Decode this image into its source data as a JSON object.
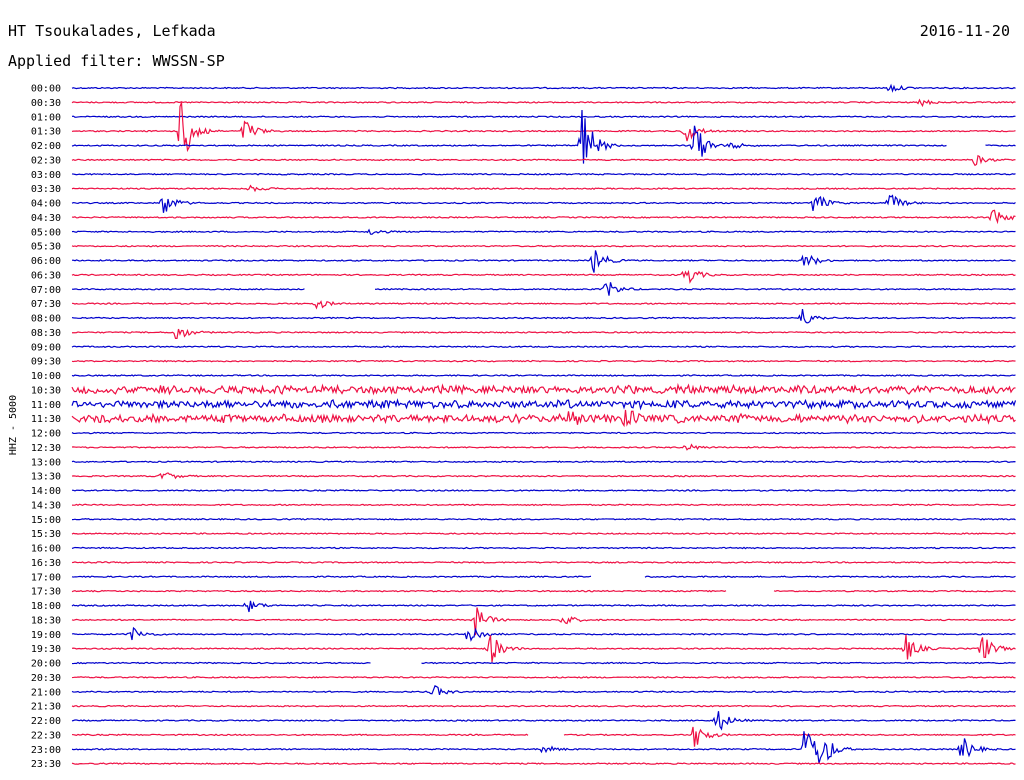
{
  "header": {
    "station": "HT Tsoukalades, Lefkada",
    "date": "2016-11-20",
    "filter": "Applied filter: WWSSN-SP"
  },
  "chart_data": {
    "type": "line",
    "title": "HT Tsoukalades, Lefkada",
    "ylabel": "HHZ - 5000",
    "rows": [
      "00:00",
      "00:30",
      "01:00",
      "01:30",
      "02:00",
      "02:30",
      "03:00",
      "03:30",
      "04:00",
      "04:30",
      "05:00",
      "05:30",
      "06:00",
      "06:30",
      "07:00",
      "07:30",
      "08:00",
      "08:30",
      "09:00",
      "09:30",
      "10:00",
      "10:30",
      "11:00",
      "11:30",
      "12:00",
      "12:30",
      "13:00",
      "13:30",
      "14:00",
      "14:30",
      "15:00",
      "15:30",
      "16:00",
      "16:30",
      "17:00",
      "17:30",
      "18:00",
      "18:30",
      "19:00",
      "19:30",
      "20:00",
      "20:30",
      "21:00",
      "21:30",
      "22:00",
      "22:30",
      "23:00",
      "23:30"
    ],
    "row_minutes": 30,
    "series_colors": [
      "#0000cc",
      "#ee1144"
    ],
    "events": [
      {
        "row": "00:00",
        "minute": 26,
        "amp": 0.4
      },
      {
        "row": "00:30",
        "minute": 27,
        "amp": 0.3
      },
      {
        "row": "01:30",
        "minute": 3.5,
        "amp": 4
      },
      {
        "row": "01:30",
        "minute": 5.5,
        "amp": 1.2
      },
      {
        "row": "01:30",
        "minute": 19.5,
        "amp": 1.1
      },
      {
        "row": "02:00",
        "minute": 16.2,
        "amp": 4
      },
      {
        "row": "02:00",
        "minute": 19.8,
        "amp": 2.2
      },
      {
        "row": "02:00",
        "minute": 21,
        "amp": 0.3
      },
      {
        "row": "02:30",
        "minute": 28.7,
        "amp": 0.5
      },
      {
        "row": "03:30",
        "minute": 5.7,
        "amp": 0.3
      },
      {
        "row": "04:00",
        "minute": 2.9,
        "amp": 1.2
      },
      {
        "row": "04:00",
        "minute": 23.6,
        "amp": 1.1
      },
      {
        "row": "04:00",
        "minute": 26,
        "amp": 0.9
      },
      {
        "row": "04:30",
        "minute": 29.3,
        "amp": 1
      },
      {
        "row": "05:00",
        "minute": 9.5,
        "amp": 0.3
      },
      {
        "row": "06:00",
        "minute": 16.6,
        "amp": 1.2
      },
      {
        "row": "06:00",
        "minute": 23.3,
        "amp": 0.8
      },
      {
        "row": "06:30",
        "minute": 19.5,
        "amp": 1.1
      },
      {
        "row": "07:00",
        "minute": 17,
        "amp": 0.9
      },
      {
        "row": "07:30",
        "minute": 7.8,
        "amp": 0.5
      },
      {
        "row": "08:00",
        "minute": 23.2,
        "amp": 0.9
      },
      {
        "row": "08:30",
        "minute": 3.3,
        "amp": 0.9
      },
      {
        "row": "11:30",
        "minute": 15.8,
        "amp": 0.7
      },
      {
        "row": "11:30",
        "minute": 17.6,
        "amp": 0.7
      },
      {
        "row": "12:30",
        "minute": 19.5,
        "amp": 0.4
      },
      {
        "row": "13:30",
        "minute": 2.9,
        "amp": 0.5
      },
      {
        "row": "18:00",
        "minute": 5.6,
        "amp": 0.6
      },
      {
        "row": "18:30",
        "minute": 12.8,
        "amp": 1.5
      },
      {
        "row": "18:30",
        "minute": 15.6,
        "amp": 0.6
      },
      {
        "row": "19:00",
        "minute": 1.9,
        "amp": 0.7
      },
      {
        "row": "19:00",
        "minute": 12.6,
        "amp": 1.3
      },
      {
        "row": "19:30",
        "minute": 13.3,
        "amp": 1.5
      },
      {
        "row": "19:30",
        "minute": 26.5,
        "amp": 1.3
      },
      {
        "row": "19:30",
        "minute": 28.9,
        "amp": 1.5
      },
      {
        "row": "21:00",
        "minute": 11.5,
        "amp": 0.6
      },
      {
        "row": "22:00",
        "minute": 20.5,
        "amp": 1.2
      },
      {
        "row": "22:30",
        "minute": 19.8,
        "amp": 1.3
      },
      {
        "row": "23:00",
        "minute": 15,
        "amp": 0.4
      },
      {
        "row": "23:00",
        "minute": 23.3,
        "amp": 2.5
      },
      {
        "row": "23:00",
        "minute": 23.8,
        "amp": 1.8
      },
      {
        "row": "23:00",
        "minute": 28.3,
        "amp": 1.2
      }
    ],
    "noisy_rows": [
      "10:30",
      "11:00",
      "11:30"
    ],
    "gaps": [
      {
        "row": "02:00",
        "start": 27.8,
        "end": 29
      },
      {
        "row": "07:00",
        "start": 7.4,
        "end": 9.6
      },
      {
        "row": "17:00",
        "start": 16.5,
        "end": 18.2
      },
      {
        "row": "17:30",
        "start": 20.8,
        "end": 22.3
      },
      {
        "row": "20:00",
        "start": 9.5,
        "end": 11.1
      },
      {
        "row": "22:30",
        "start": 14.5,
        "end": 15.6
      }
    ]
  }
}
